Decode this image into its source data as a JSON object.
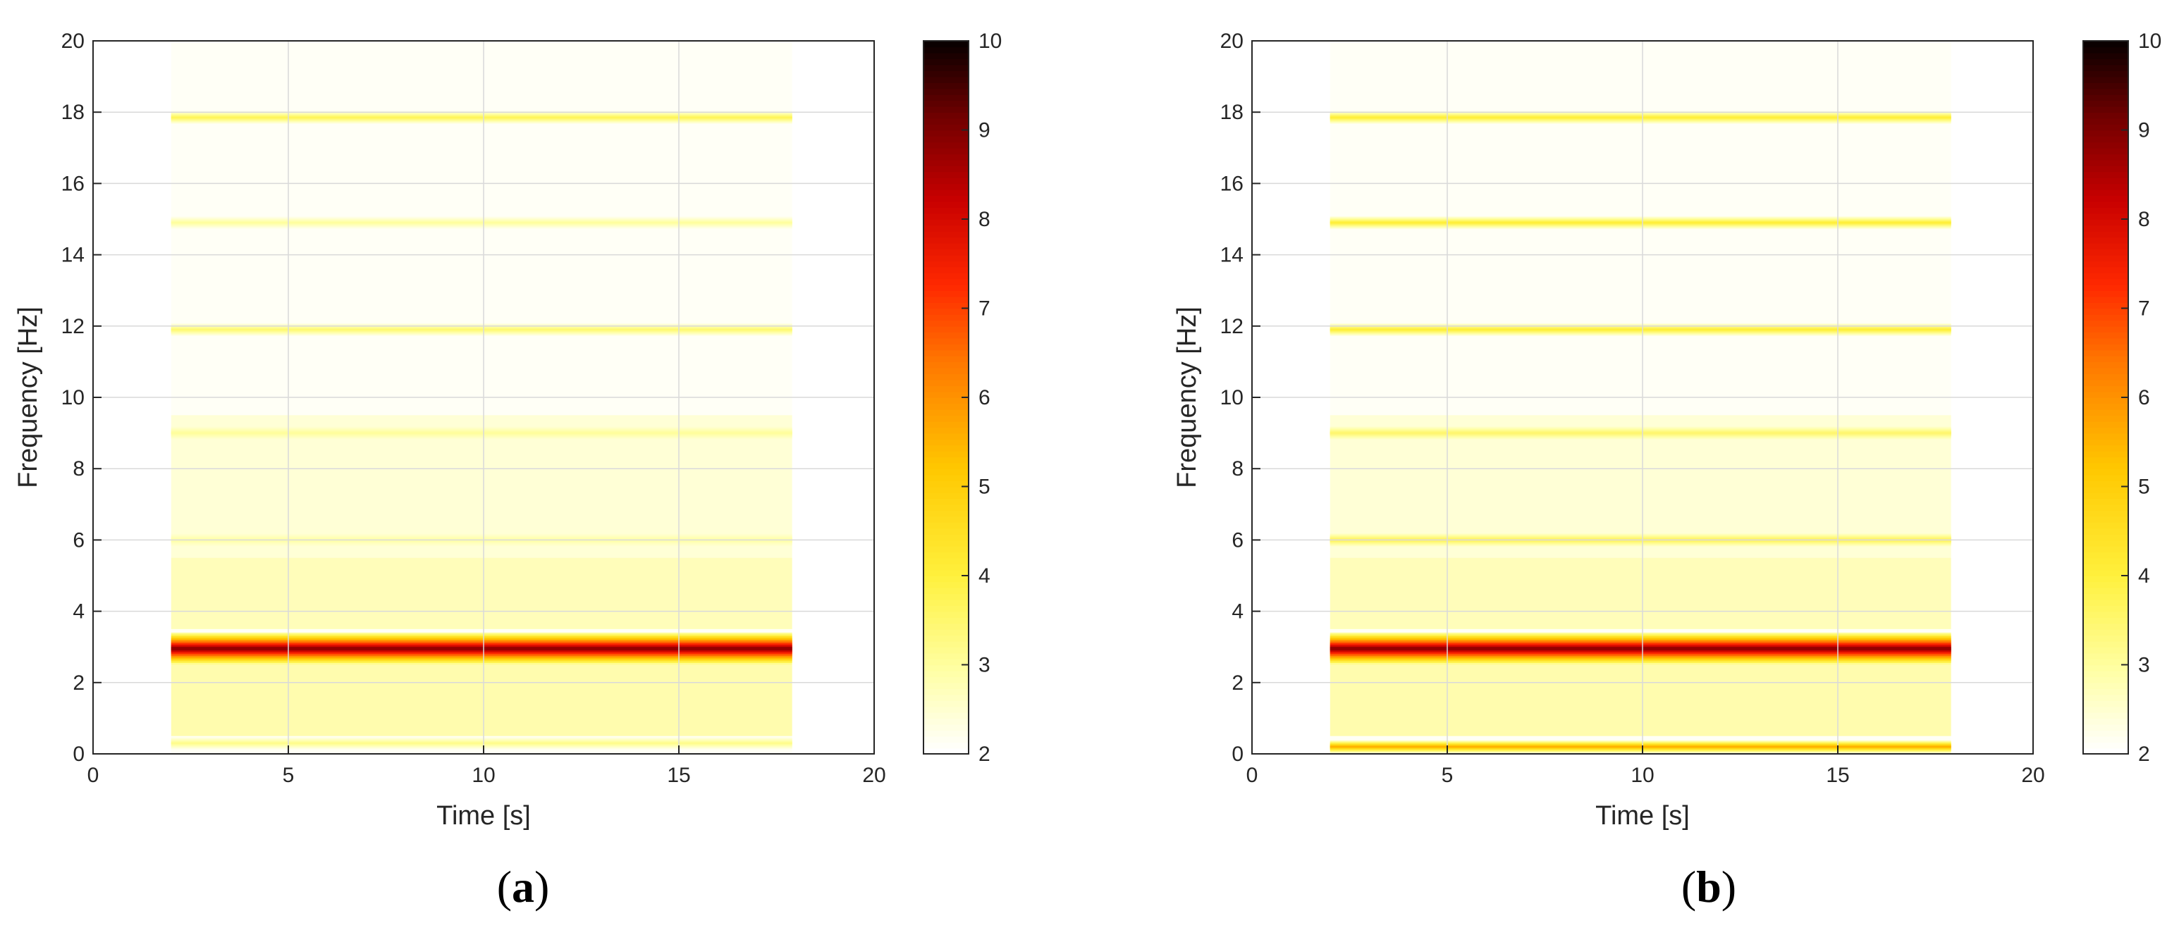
{
  "chart_data": [
    {
      "panel_label": "a",
      "type": "heatmap",
      "xlabel": "Time [s]",
      "ylabel": "Frequency [Hz]",
      "xlim": [
        0,
        20
      ],
      "ylim": [
        0,
        20
      ],
      "xticks": [
        "0",
        "5",
        "10",
        "15",
        "20"
      ],
      "yticks": [
        "0",
        "2",
        "4",
        "6",
        "8",
        "10",
        "12",
        "14",
        "16",
        "18",
        "20"
      ],
      "grid": true,
      "data_time_range": [
        2,
        17.9
      ],
      "colorbar": {
        "range": [
          2,
          10
        ],
        "ticks": [
          "2",
          "3",
          "4",
          "5",
          "6",
          "7",
          "8",
          "9",
          "10"
        ],
        "colormap": "hot (reversed)"
      },
      "bands": [
        {
          "frequency": 2.95,
          "peak_value": 9.5,
          "description": "dominant component"
        },
        {
          "frequency": 0.3,
          "peak_value": 3.3
        },
        {
          "frequency": 6.0,
          "peak_value": 3.1
        },
        {
          "frequency": 9.0,
          "peak_value": 3.3
        },
        {
          "frequency": 11.9,
          "peak_value": 3.6
        },
        {
          "frequency": 14.9,
          "peak_value": 3.1
        },
        {
          "frequency": 17.85,
          "peak_value": 3.9
        }
      ]
    },
    {
      "panel_label": "b",
      "type": "heatmap",
      "xlabel": "Time [s]",
      "ylabel": "Frequency [Hz]",
      "xlim": [
        0,
        20
      ],
      "ylim": [
        0,
        20
      ],
      "xticks": [
        "0",
        "5",
        "10",
        "15",
        "20"
      ],
      "yticks": [
        "0",
        "2",
        "4",
        "6",
        "8",
        "10",
        "12",
        "14",
        "16",
        "18",
        "20"
      ],
      "grid": true,
      "data_time_range": [
        2,
        17.9
      ],
      "colorbar": {
        "range": [
          2,
          10
        ],
        "ticks": [
          "2",
          "3",
          "4",
          "5",
          "6",
          "7",
          "8",
          "9",
          "10"
        ],
        "colormap": "hot (reversed)"
      },
      "bands": [
        {
          "frequency": 2.95,
          "peak_value": 9.5,
          "description": "dominant component"
        },
        {
          "frequency": 0.2,
          "peak_value": 6.0
        },
        {
          "frequency": 6.0,
          "peak_value": 4.8
        },
        {
          "frequency": 9.0,
          "peak_value": 4.3
        },
        {
          "frequency": 11.9,
          "peak_value": 4.3
        },
        {
          "frequency": 14.9,
          "peak_value": 4.3
        },
        {
          "frequency": 17.85,
          "peak_value": 4.3
        }
      ]
    }
  ]
}
